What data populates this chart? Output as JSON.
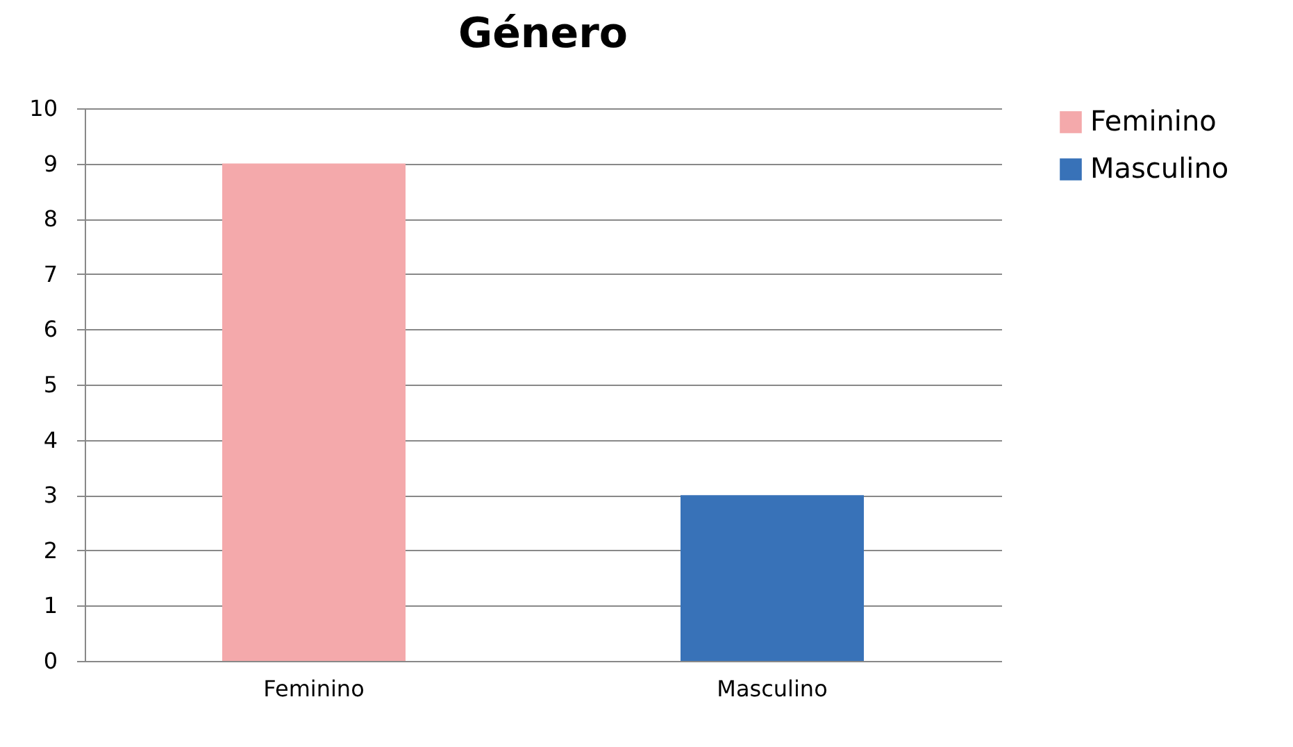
{
  "chart_data": {
    "type": "bar",
    "title": "Género",
    "categories": [
      "Feminino",
      "Masculino"
    ],
    "series": [
      {
        "name": "Feminino",
        "color": "#f4a9ab",
        "values": [
          9,
          null
        ]
      },
      {
        "name": "Masculino",
        "color": "#3872b8",
        "values": [
          null,
          3
        ]
      }
    ],
    "ylim": [
      0,
      10
    ],
    "yticks": [
      0,
      1,
      2,
      3,
      4,
      5,
      6,
      7,
      8,
      9,
      10
    ],
    "grid": "y",
    "legend": "right"
  }
}
